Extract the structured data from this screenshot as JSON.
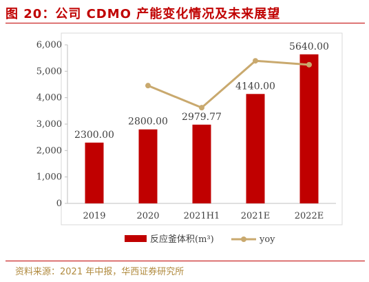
{
  "figure": {
    "title": "图 20：公司 CDMO 产能变化情况及未来展望",
    "source": "资料来源：2021 年中报，华西证券研究所"
  },
  "colors": {
    "bar": "#c00000",
    "line": "#c9a96e",
    "text": "#404040",
    "axis": "#bfbfbf",
    "rule": "#c00000",
    "source": "#b08a3e"
  },
  "chart_data": {
    "type": "bar",
    "categories": [
      "2019",
      "2020",
      "2021H1",
      "2021E",
      "2022E"
    ],
    "series": [
      {
        "name": "反应釜体积(m³)",
        "type": "bar",
        "values": [
          2300.0,
          2800.0,
          2979.77,
          4140.0,
          5640.0
        ],
        "labels": [
          "2300.00",
          "2800.00",
          "2979.77",
          "4140.00",
          "5640.00"
        ]
      },
      {
        "name": "yoy",
        "type": "line",
        "values": [
          null,
          0.217,
          0.064,
          0.389,
          0.362
        ]
      }
    ],
    "yticks": [
      "0",
      "1,000",
      "2,000",
      "3,000",
      "4,000",
      "5,000",
      "6,000"
    ],
    "ylim": [
      0,
      6000
    ],
    "y2lim": [
      -0.6,
      0.5
    ],
    "legend_position": "bottom",
    "grid": false
  }
}
